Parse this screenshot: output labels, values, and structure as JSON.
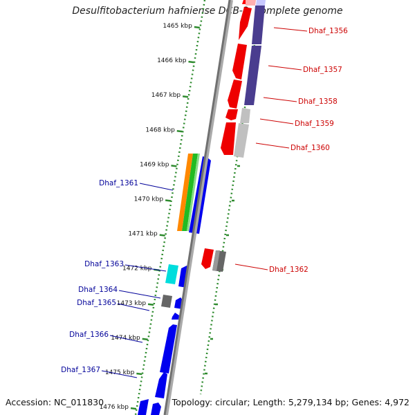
{
  "title": "Desulfitobacterium hafniense DCB-2, complete genome",
  "footer": {
    "accession": "Accession: NC_011830",
    "summary": "Topology: circular; Length: 5,279,134 bp; Genes: 4,972"
  },
  "colors": {
    "label_reverse": "#cc0000",
    "label_forward": "#000099",
    "backbone": "#777777",
    "dotted_ring": "#2e8b2e"
  },
  "kbp_ticks": [
    {
      "kbp": 1465,
      "label": "1465 kbp"
    },
    {
      "kbp": 1466,
      "label": "1466 kbp"
    },
    {
      "kbp": 1467,
      "label": "1467 kbp"
    },
    {
      "kbp": 1468,
      "label": "1468 kbp"
    },
    {
      "kbp": 1469,
      "label": "1469 kbp"
    },
    {
      "kbp": 1470,
      "label": "1470 kbp"
    },
    {
      "kbp": 1471,
      "label": "1471 kbp"
    },
    {
      "kbp": 1472,
      "label": "1472 kbp"
    },
    {
      "kbp": 1473,
      "label": "1473 kbp"
    },
    {
      "kbp": 1474,
      "label": "1474 kbp"
    },
    {
      "kbp": 1475,
      "label": "1475 kbp"
    },
    {
      "kbp": 1476,
      "label": "1476 kbp"
    }
  ],
  "genes_reverse": [
    {
      "label": "Dhaf_1356"
    },
    {
      "label": "Dhaf_1357"
    },
    {
      "label": "Dhaf_1358"
    },
    {
      "label": "Dhaf_1359"
    },
    {
      "label": "Dhaf_1360"
    },
    {
      "label": "Dhaf_1362"
    }
  ],
  "genes_forward": [
    {
      "label": "Dhaf_1361"
    },
    {
      "label": "Dhaf_1363"
    },
    {
      "label": "Dhaf_1364"
    },
    {
      "label": "Dhaf_1365"
    },
    {
      "label": "Dhaf_1366"
    },
    {
      "label": "Dhaf_1367"
    }
  ]
}
